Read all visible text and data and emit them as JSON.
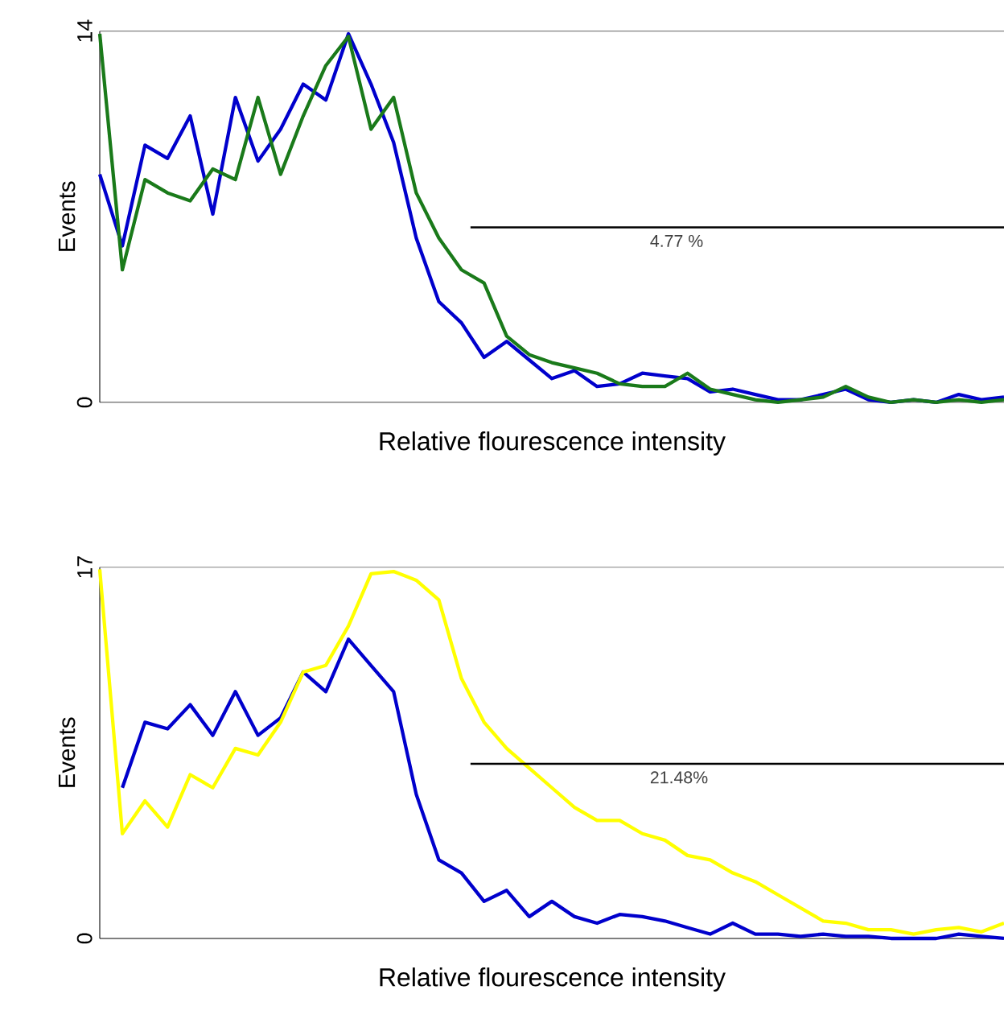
{
  "chart_data": [
    {
      "type": "line",
      "xlabel": "Relative flourescence intensity",
      "ylabel": "Events",
      "categories": [
        null,
        null,
        null,
        null,
        null,
        null,
        null,
        null,
        null,
        null,
        null,
        null,
        null,
        null,
        null,
        null,
        null,
        null,
        null,
        null,
        null,
        null,
        null,
        null,
        null,
        null,
        null,
        null,
        null,
        null,
        null,
        null,
        null,
        null,
        null,
        null,
        null,
        null,
        null,
        null,
        null
      ],
      "series": [
        {
          "color": "#0000cc",
          "values": [
            8.6,
            5.9,
            9.7,
            9.2,
            10.8,
            7.1,
            11.5,
            9.1,
            10.3,
            12.0,
            11.4,
            13.9,
            12.0,
            9.8,
            6.2,
            3.8,
            3.0,
            1.7,
            2.3,
            1.6,
            0.9,
            1.2,
            0.6,
            0.7,
            1.1,
            1.0,
            0.9,
            0.4,
            0.5,
            0.3,
            0.1,
            0.1,
            0.3,
            0.5,
            0.1,
            0.0,
            0.1,
            0.0,
            0.3,
            0.1,
            0.2
          ]
        },
        {
          "color": "#1a7a1a",
          "values": [
            13.9,
            5.0,
            8.4,
            7.9,
            7.6,
            8.8,
            8.4,
            11.5,
            8.6,
            10.8,
            12.7,
            13.8,
            10.3,
            11.5,
            7.9,
            6.2,
            5.0,
            4.5,
            2.5,
            1.8,
            1.5,
            1.3,
            1.1,
            0.7,
            0.6,
            0.6,
            1.1,
            0.5,
            0.3,
            0.1,
            0.0,
            0.1,
            0.2,
            0.6,
            0.2,
            0.0,
            0.1,
            0.0,
            0.1,
            0.0,
            0.1
          ]
        }
      ],
      "ylim": [
        0,
        14
      ],
      "yticks": [
        0,
        14
      ],
      "tick_labels": "y",
      "grid": false,
      "marker": "none",
      "line_style": "solid",
      "ref_lines": [
        {
          "axis": "y",
          "value": 6.6
        }
      ],
      "annotations": [
        "4.77 %"
      ]
    },
    {
      "type": "line",
      "xlabel": "Relative flourescence intensity",
      "ylabel": "Events",
      "categories": [
        null,
        null,
        null,
        null,
        null,
        null,
        null,
        null,
        null,
        null,
        null,
        null,
        null,
        null,
        null,
        null,
        null,
        null,
        null,
        null,
        null,
        null,
        null,
        null,
        null,
        null,
        null,
        null,
        null,
        null,
        null,
        null,
        null,
        null,
        null,
        null,
        null,
        null,
        null,
        null,
        null
      ],
      "series": [
        {
          "color": "#0000cc",
          "values": [
            null,
            6.9,
            9.9,
            9.6,
            10.7,
            9.3,
            11.3,
            9.3,
            10.1,
            12.2,
            11.3,
            13.7,
            12.5,
            11.3,
            6.6,
            3.6,
            3.0,
            1.7,
            2.2,
            1.0,
            1.7,
            1.0,
            0.7,
            1.1,
            1.0,
            0.8,
            0.5,
            0.2,
            0.7,
            0.2,
            0.2,
            0.1,
            0.2,
            0.1,
            0.1,
            0.0,
            0.0,
            0.0,
            0.2,
            0.1,
            0.0
          ]
        },
        {
          "color": "#ffff00",
          "values": [
            16.9,
            4.8,
            6.3,
            5.1,
            7.5,
            6.9,
            8.7,
            8.4,
            9.9,
            12.2,
            12.5,
            14.3,
            16.7,
            16.8,
            16.4,
            15.5,
            11.9,
            9.9,
            8.7,
            7.8,
            6.9,
            6.0,
            5.4,
            5.4,
            4.8,
            4.5,
            3.8,
            3.6,
            3.0,
            2.6,
            2.0,
            1.4,
            0.8,
            0.7,
            0.4,
            0.4,
            0.2,
            0.4,
            0.5,
            0.3,
            0.7
          ]
        }
      ],
      "ylim": [
        0,
        17
      ],
      "yticks": [
        0,
        17
      ],
      "tick_labels": "y",
      "grid": false,
      "marker": "none",
      "line_style": "solid",
      "ref_lines": [
        {
          "axis": "y",
          "value": 8.0
        }
      ],
      "annotations": [
        "21.48%"
      ]
    }
  ]
}
